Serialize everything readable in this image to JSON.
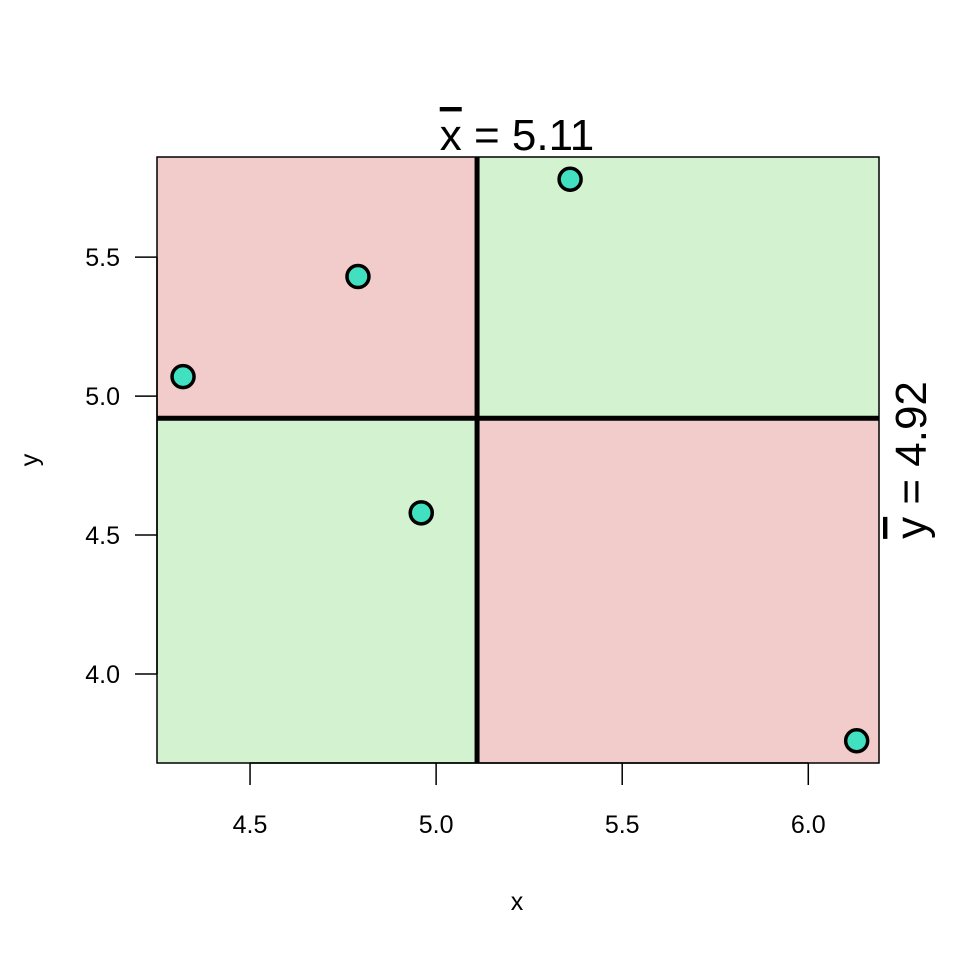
{
  "chart_data": {
    "type": "scatter",
    "xlabel": "x",
    "ylabel": "y",
    "xlim": [
      4.25,
      6.19
    ],
    "ylim": [
      3.68,
      5.86
    ],
    "x_ticks": [
      "4.5",
      "5.0",
      "5.5",
      "6.0"
    ],
    "y_ticks": [
      "4.0",
      "4.5",
      "5.0",
      "5.5"
    ],
    "x_mean": 5.11,
    "y_mean": 4.92,
    "x_mean_label": "x = 5.11",
    "y_mean_label": "y = 4.92",
    "points": [
      {
        "x": 4.32,
        "y": 5.07
      },
      {
        "x": 4.79,
        "y": 5.43
      },
      {
        "x": 4.96,
        "y": 4.58
      },
      {
        "x": 5.36,
        "y": 5.78
      },
      {
        "x": 6.13,
        "y": 3.76
      }
    ],
    "grid": false,
    "colors": {
      "negative_quadrant": "#f2cbcb",
      "positive_quadrant": "#d3f2cf",
      "point_fill": "#40e0c0",
      "point_stroke": "#000000"
    }
  }
}
